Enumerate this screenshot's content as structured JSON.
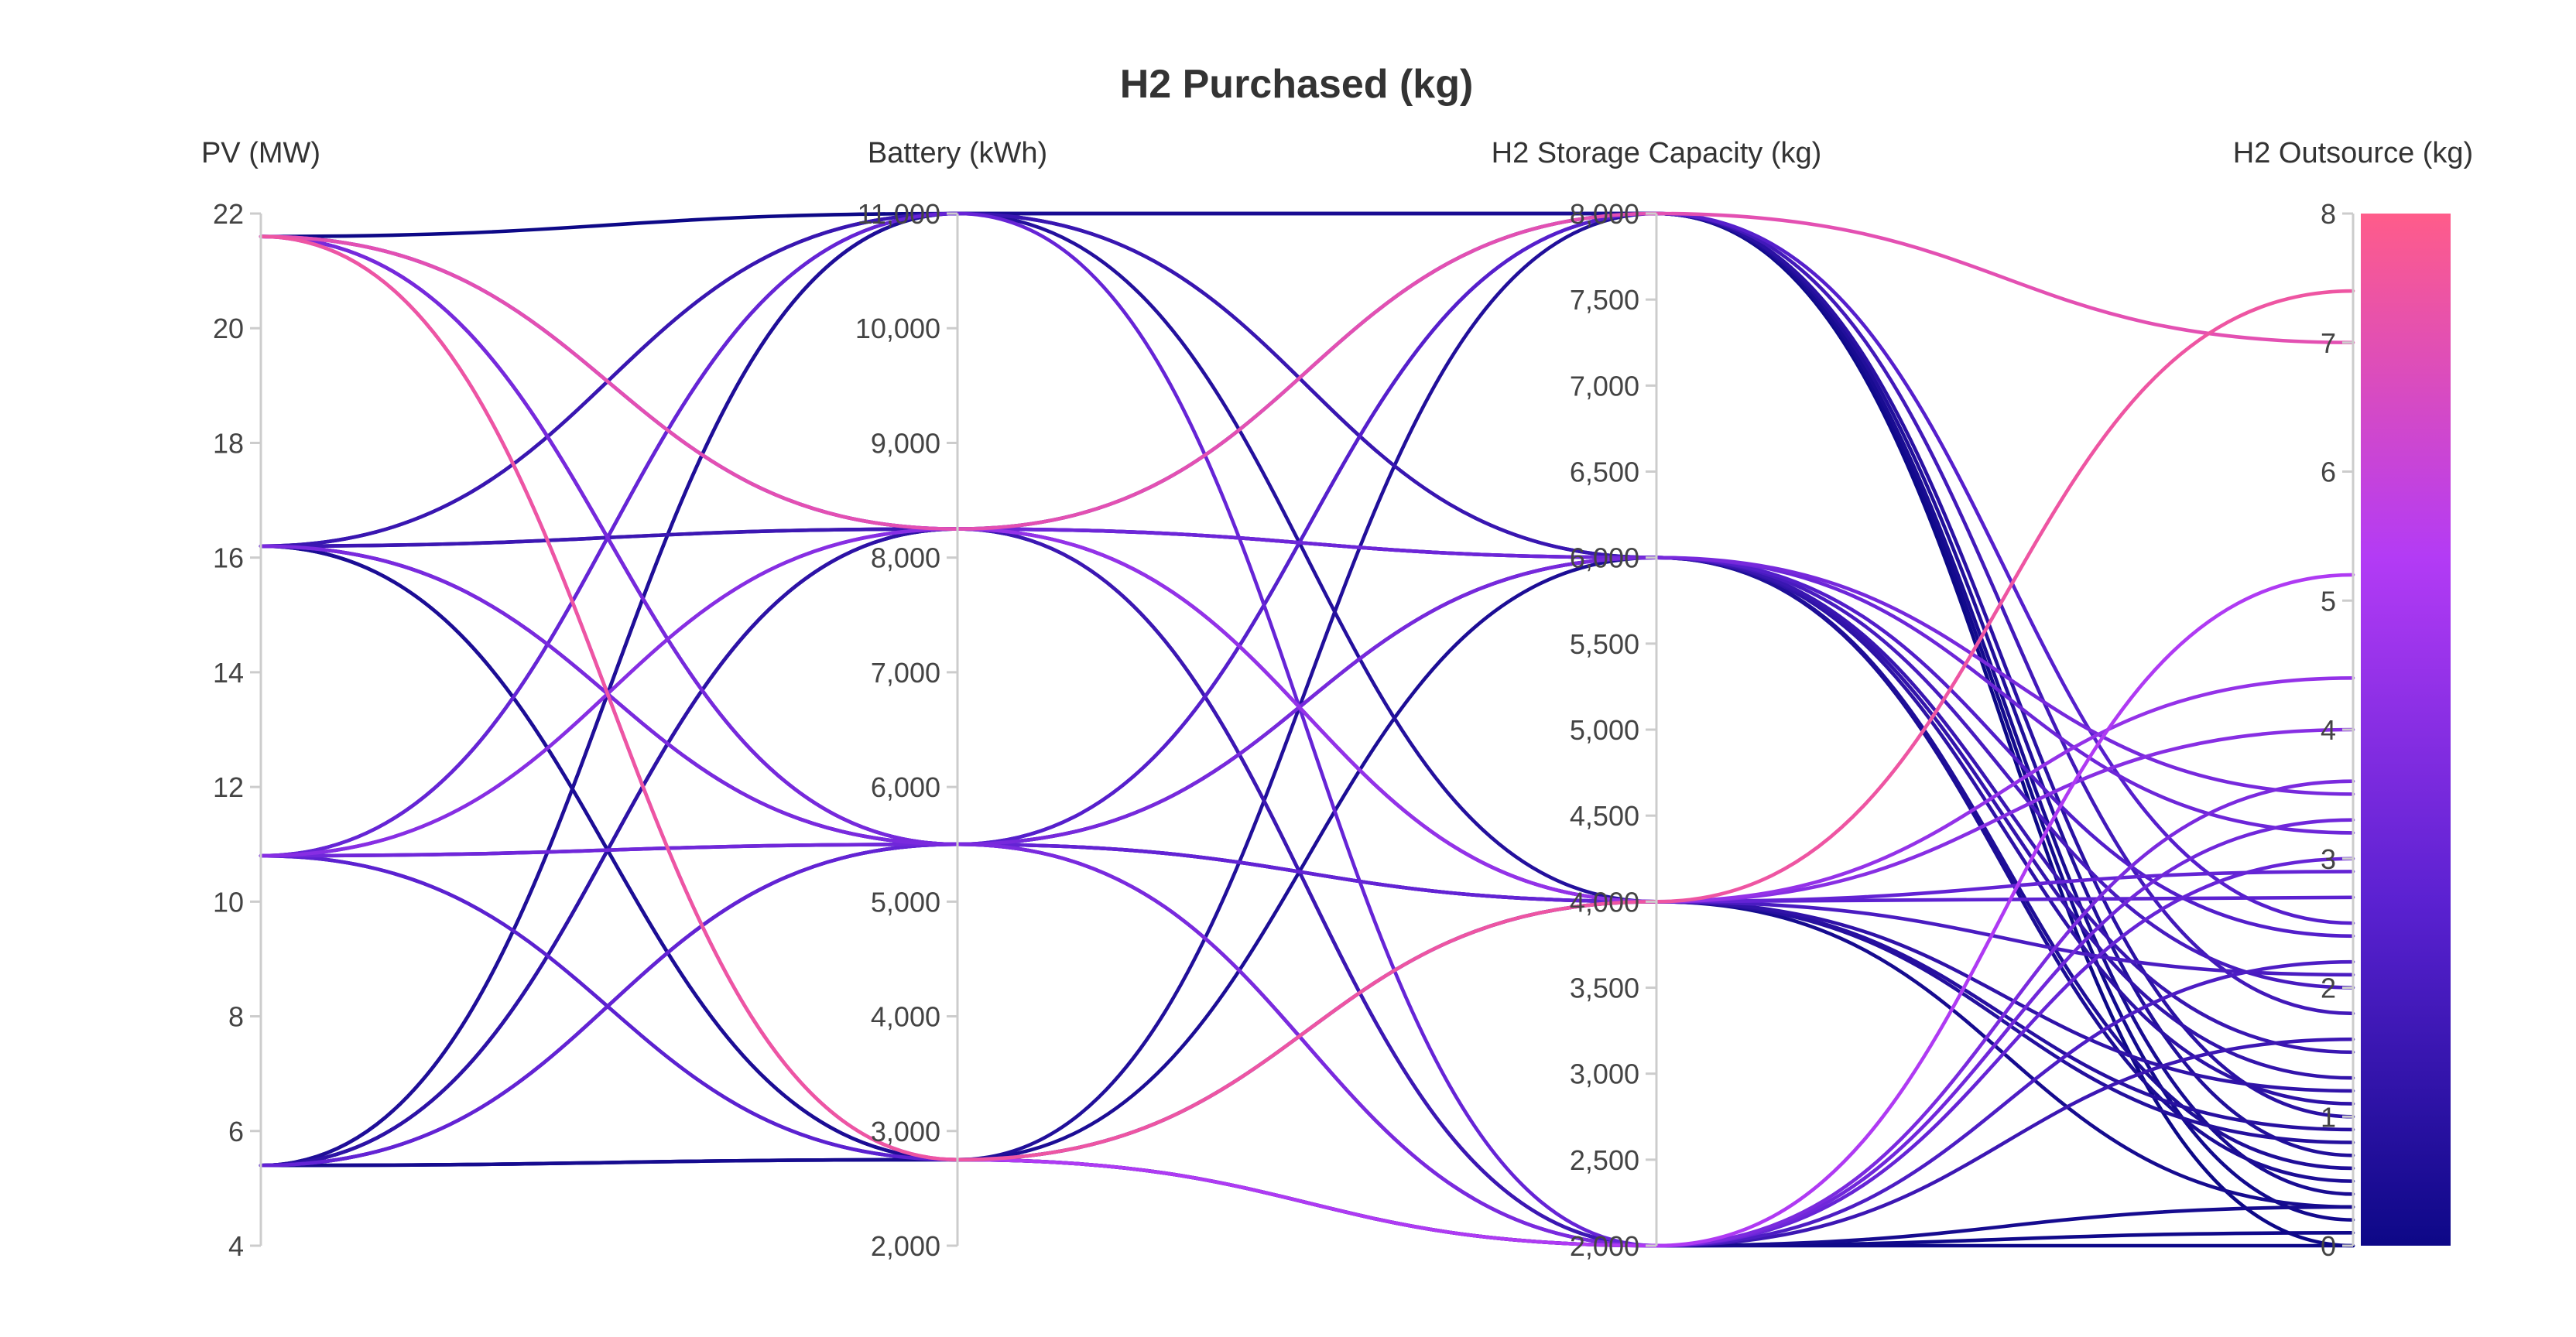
{
  "chart_data": {
    "type": "parallel-coordinates",
    "title": "H2 Purchased (kg)",
    "axes": [
      {
        "label": "PV (MW)",
        "min": 4,
        "max": 22,
        "ticks": [
          "4",
          "6",
          "8",
          "10",
          "12",
          "14",
          "16",
          "18",
          "20",
          "22"
        ],
        "tick_values": [
          4,
          6,
          8,
          10,
          12,
          14,
          16,
          18,
          20,
          22
        ]
      },
      {
        "label": "Battery (kWh)",
        "min": 2000,
        "max": 11000,
        "ticks": [
          "2,000",
          "3,000",
          "4,000",
          "5,000",
          "6,000",
          "7,000",
          "8,000",
          "9,000",
          "10,000",
          "11,000"
        ],
        "tick_values": [
          2000,
          3000,
          4000,
          5000,
          6000,
          7000,
          8000,
          9000,
          10000,
          11000
        ]
      },
      {
        "label": "H2 Storage Capacity (kg)",
        "min": 2000,
        "max": 8000,
        "ticks": [
          "2,000",
          "2,500",
          "3,000",
          "3,500",
          "4,000",
          "4,500",
          "5,000",
          "5,500",
          "6,000",
          "6,500",
          "7,000",
          "7,500",
          "8,000"
        ],
        "tick_values": [
          2000,
          2500,
          3000,
          3500,
          4000,
          4500,
          5000,
          5500,
          6000,
          6500,
          7000,
          7500,
          8000
        ]
      },
      {
        "label": "H2 Outsource (kg)",
        "min": 0,
        "max": 8,
        "ticks": [
          "0",
          "1",
          "2",
          "3",
          "4",
          "5",
          "6",
          "7",
          "8"
        ],
        "tick_values": [
          0,
          1,
          2,
          3,
          4,
          5,
          6,
          7,
          8
        ]
      }
    ],
    "colorscale": [
      "#0d0887",
      "#5b21d1",
      "#b33bf5",
      "#ff5c8a"
    ],
    "color_range": [
      0,
      8
    ],
    "lines": [
      [
        21.6,
        11000,
        8000,
        0
      ],
      [
        21.6,
        8250,
        8000,
        7.0
      ],
      [
        21.6,
        8250,
        6000,
        2.4
      ],
      [
        21.6,
        5500,
        6000,
        3.5
      ],
      [
        21.6,
        5500,
        4000,
        2.1
      ],
      [
        21.6,
        2750,
        4000,
        7.4
      ],
      [
        21.6,
        2750,
        2000,
        5.2
      ],
      [
        21.6,
        8250,
        4000,
        4.4
      ],
      [
        21.6,
        5500,
        2000,
        2.2
      ],
      [
        16.2,
        11000,
        6000,
        1.5
      ],
      [
        16.2,
        11000,
        4000,
        0.8
      ],
      [
        16.2,
        8250,
        8000,
        1.0
      ],
      [
        16.2,
        8250,
        2000,
        1.6
      ],
      [
        16.2,
        5500,
        8000,
        2.5
      ],
      [
        16.2,
        5500,
        4000,
        1.2
      ],
      [
        16.2,
        2750,
        2000,
        0.3
      ],
      [
        16.2,
        2750,
        6000,
        0.5
      ],
      [
        16.2,
        5500,
        2000,
        3.6
      ],
      [
        10.8,
        11000,
        8000,
        0.4
      ],
      [
        10.8,
        8250,
        4000,
        4.0
      ],
      [
        10.8,
        8250,
        6000,
        3.2
      ],
      [
        10.8,
        5500,
        6000,
        1.3
      ],
      [
        10.8,
        5500,
        2000,
        3.3
      ],
      [
        10.8,
        2750,
        4000,
        2.7
      ],
      [
        10.8,
        2750,
        8000,
        0.7
      ],
      [
        10.8,
        11000,
        2000,
        3.0
      ],
      [
        5.4,
        11000,
        8000,
        0.2
      ],
      [
        5.4,
        11000,
        6000,
        0.6
      ],
      [
        5.4,
        8250,
        4000,
        0.9
      ],
      [
        5.4,
        8250,
        2000,
        0.1
      ],
      [
        5.4,
        5500,
        8000,
        1.8
      ],
      [
        5.4,
        5500,
        6000,
        2.0
      ],
      [
        5.4,
        2750,
        2000,
        0.0
      ],
      [
        5.4,
        2750,
        4000,
        0.3
      ],
      [
        5.4,
        5500,
        4000,
        2.9
      ],
      [
        5.4,
        8250,
        6000,
        1.1
      ]
    ]
  }
}
